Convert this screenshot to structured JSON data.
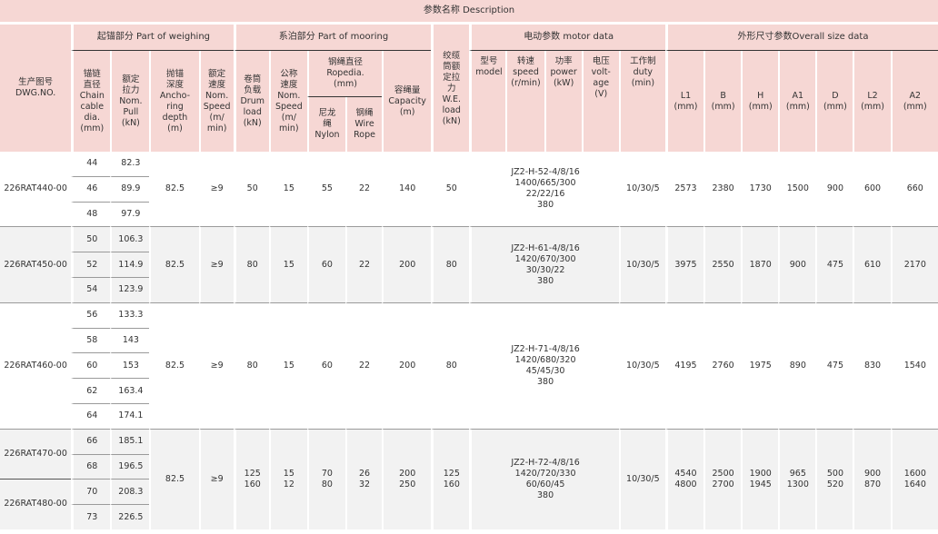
{
  "header": {
    "description": "参数名称 Description",
    "dwg_no": "生产图号\nDWG.NO.",
    "group_weighing": "起锚部分 Part of weighing",
    "group_mooring": "系泊部分 Part of mooring",
    "group_motor": "电动参数 motor data",
    "group_size": "外形尺寸参数Overall size data",
    "chain_dia": "锚链\n直径\nChain\ncable\ndia.\n(mm)",
    "nom_pull": "额定\n拉力\nNom.\nPull\n(kN)",
    "anchoring_depth": "抛锚\n深度\nAncho-\nring\ndepth\n(m)",
    "nom_speed_w": "额定\n速度\nNom.\nSpeed\n(m/\nmin)",
    "drum_load": "卷筒\n负载\nDrum\nload\n(kN)",
    "nom_speed_m": "公称\n速度\nNom.\nSpeed\n(m/\nmin)",
    "rope_dia": "钢绳直径\nRopedia.\n(mm)",
    "nylon": "尼龙\n绳\nNylon",
    "wire_rope": "钢绳\nWire\nRope",
    "capacity": "容绳量\nCapacity\n(m)",
    "we_load": "绞缆\n筒额\n定拉\n力\nW.E.\nload\n(kN)",
    "model": "型号\nmodel",
    "rot_speed": "转速\nspeed\n(r/min)",
    "power": "功率\npower\n(kW)",
    "voltage": "电压\nvolt-\nage\n(V)",
    "duty": "工作制\nduty\n(min)",
    "L1": "L1\n(mm)",
    "B": "B\n(mm)",
    "H": "H\n(mm)",
    "A1": "A1\n(mm)",
    "D": "D\n(mm)",
    "L2": "L2\n(mm)",
    "A2": "A2\n(mm)"
  },
  "rows": [
    {
      "dwg": "226RAT440-00",
      "chains": [
        [
          "44",
          "82.3"
        ],
        [
          "46",
          "89.9"
        ],
        [
          "48",
          "97.9"
        ]
      ],
      "depth": "82.5",
      "speed_w": "≥9",
      "drum": "50",
      "speed_m": "15",
      "nylon": "55",
      "wire": "22",
      "capacity": "140",
      "we": "50",
      "motor": "JZ2-H-52-4/8/16\n1400/665/300\n22/22/16\n380",
      "duty": "10/30/5",
      "L1": "2573",
      "B": "2380",
      "H": "1730",
      "A1": "1500",
      "D": "900",
      "L2": "600",
      "A2": "660"
    },
    {
      "dwg": "226RAT450-00",
      "chains": [
        [
          "50",
          "106.3"
        ],
        [
          "52",
          "114.9"
        ],
        [
          "54",
          "123.9"
        ]
      ],
      "depth": "82.5",
      "speed_w": "≥9",
      "drum": "80",
      "speed_m": "15",
      "nylon": "60",
      "wire": "22",
      "capacity": "200",
      "we": "80",
      "motor": "JZ2-H-61-4/8/16\n1420/670/300\n30/30/22\n380",
      "duty": "10/30/5",
      "L1": "3975",
      "B": "2550",
      "H": "1870",
      "A1": "900",
      "D": "475",
      "L2": "610",
      "A2": "2170"
    },
    {
      "dwg": "226RAT460-00",
      "chains": [
        [
          "56",
          "133.3"
        ],
        [
          "58",
          "143"
        ],
        [
          "60",
          "153"
        ],
        [
          "62",
          "163.4"
        ],
        [
          "64",
          "174.1"
        ]
      ],
      "depth": "82.5",
      "speed_w": "≥9",
      "drum": "80",
      "speed_m": "15",
      "nylon": "60",
      "wire": "22",
      "capacity": "200",
      "we": "80",
      "motor": "JZ2-H-71-4/8/16\n1420/680/320\n45/45/30\n380",
      "duty": "10/30/5",
      "L1": "4195",
      "B": "2760",
      "H": "1975",
      "A1": "890",
      "D": "475",
      "L2": "830",
      "A2": "1540"
    },
    {
      "dwg_a": "226RAT470-00",
      "dwg_b": "226RAT480-00",
      "chains": [
        [
          "66",
          "185.1"
        ],
        [
          "68",
          "196.5"
        ],
        [
          "70",
          "208.3"
        ],
        [
          "73",
          "226.5"
        ]
      ],
      "depth": "82.5",
      "speed_w": "≥9",
      "drum": "125\n160",
      "speed_m": "15\n12",
      "nylon": "70\n80",
      "wire": "26\n32",
      "capacity": "200\n250",
      "we": "125\n160",
      "motor": "JZ2-H-72-4/8/16\n1420/720/330\n60/60/45\n380",
      "duty": "10/30/5",
      "L1": "4540\n4800",
      "B": "2500\n2700",
      "H": "1900\n1945",
      "A1": "965\n1300",
      "D": "500\n520",
      "L2": "900\n870",
      "A2": "1600\n1640"
    }
  ]
}
